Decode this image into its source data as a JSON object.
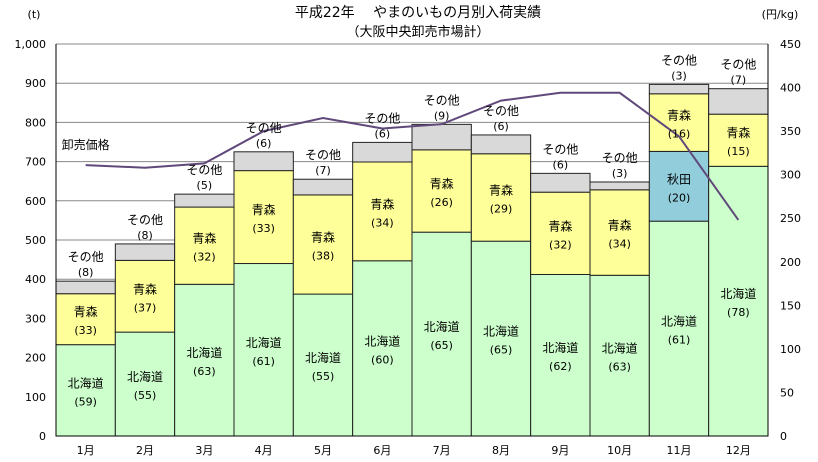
{
  "chart_data": {
    "type": "bar",
    "title": "平成22年　 やまのいもの月別入荷実績",
    "subtitle": "（大阪中央卸売市場計）",
    "ylabel_left": "(t)",
    "ylabel_right": "(円/kg)",
    "categories": [
      "1月",
      "2月",
      "3月",
      "4月",
      "5月",
      "6月",
      "7月",
      "8月",
      "9月",
      "10月",
      "11月",
      "12月"
    ],
    "ylim": [
      0,
      1000
    ],
    "y_ticks": [
      "0",
      "100",
      "200",
      "300",
      "400",
      "500",
      "600",
      "700",
      "800",
      "900",
      "1,000"
    ],
    "y2lim": [
      0,
      450
    ],
    "y2_ticks": [
      "0",
      "50",
      "100",
      "150",
      "200",
      "250",
      "300",
      "350",
      "400",
      "450"
    ],
    "grid": true,
    "series": [
      {
        "name": "北海道",
        "color": "#ccffcc",
        "values": [
          233,
          265,
          387,
          440,
          362,
          447,
          520,
          497,
          412,
          410,
          548,
          688
        ],
        "labels": [
          "(59)",
          "(55)",
          "(63)",
          "(61)",
          "(55)",
          "(60)",
          "(65)",
          "(65)",
          "(62)",
          "(63)",
          "(61)",
          "(78)"
        ]
      },
      {
        "name": "秋田",
        "color": "#92cddc",
        "values": [
          0,
          0,
          0,
          0,
          0,
          0,
          0,
          0,
          0,
          0,
          178,
          0
        ],
        "labels": [
          "",
          "",
          "",
          "",
          "",
          "",
          "",
          "",
          "",
          "",
          "(20)",
          ""
        ]
      },
      {
        "name": "青森",
        "color": "#ffff99",
        "values": [
          130,
          183,
          197,
          237,
          253,
          252,
          210,
          223,
          210,
          218,
          147,
          133
        ],
        "labels": [
          "(33)",
          "(37)",
          "(32)",
          "(33)",
          "(38)",
          "(34)",
          "(26)",
          "(29)",
          "(32)",
          "(34)",
          "(16)",
          "(15)"
        ]
      },
      {
        "name": "その他",
        "color": "#d9d9d9",
        "values": [
          32,
          42,
          33,
          48,
          40,
          50,
          65,
          48,
          48,
          20,
          24,
          65
        ],
        "labels": [
          "(8)",
          "(8)",
          "(5)",
          "(6)",
          "(7)",
          "(6)",
          "(9)",
          "(6)",
          "(6)",
          "(3)",
          "(3)",
          "(7)"
        ]
      }
    ],
    "line": {
      "name": "卸売価格",
      "color": "#60497a",
      "values": [
        311,
        308,
        313,
        350,
        365,
        353,
        358,
        385,
        394,
        394,
        344,
        248
      ]
    }
  }
}
